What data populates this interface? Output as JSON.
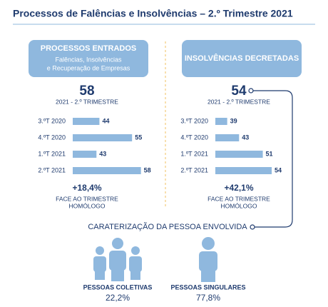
{
  "title": "Processos de Falências e Insolvências – 2.º Trimestre 2021",
  "chart_data": [
    {
      "type": "bar",
      "header": "PROCESSOS ENTRADOS",
      "subheader": [
        "Falências, Insolvências",
        "e Recuperação de Empresas"
      ],
      "total": 58,
      "total_label": "2021 - 2.º TRIMESTRE",
      "categories": [
        "3.ºT 2020",
        "4.ºT 2020",
        "1.ºT 2021",
        "2.ºT 2021"
      ],
      "values": [
        44,
        55,
        43,
        58
      ],
      "color": "#8fb8de",
      "xlim": [
        35,
        60
      ],
      "change": "+18,4%",
      "change_label": [
        "FACE AO TRIMESTRE",
        "HOMÓLOGO"
      ]
    },
    {
      "type": "bar",
      "header": "INSOLVÊNCIAS DECRETADAS",
      "subheader": [],
      "total": 54,
      "total_label": "2021 - 2.º TRIMESTRE",
      "categories": [
        "3.ºT 2020",
        "4.ºT 2020",
        "1.ºT 2021",
        "2.ºT 2021"
      ],
      "values": [
        39,
        43,
        51,
        54
      ],
      "color": "#8fb8de",
      "xlim": [
        35,
        60
      ],
      "change": "+42,1%",
      "change_label": [
        "FACE AO TRIMESTRE",
        "HOMÓLOGO"
      ]
    }
  ],
  "section_title": "CARATERIZAÇÃO DA PESSOA ENVOLVIDA",
  "groups": [
    {
      "label": "PESSOAS COLETIVAS",
      "value": {
        "value": 22.2,
        "label": "22,2%"
      }
    },
    {
      "label": "PESSOAS SINGULARES",
      "value": {
        "value": 77.8,
        "label": "77,8%"
      }
    }
  ]
}
